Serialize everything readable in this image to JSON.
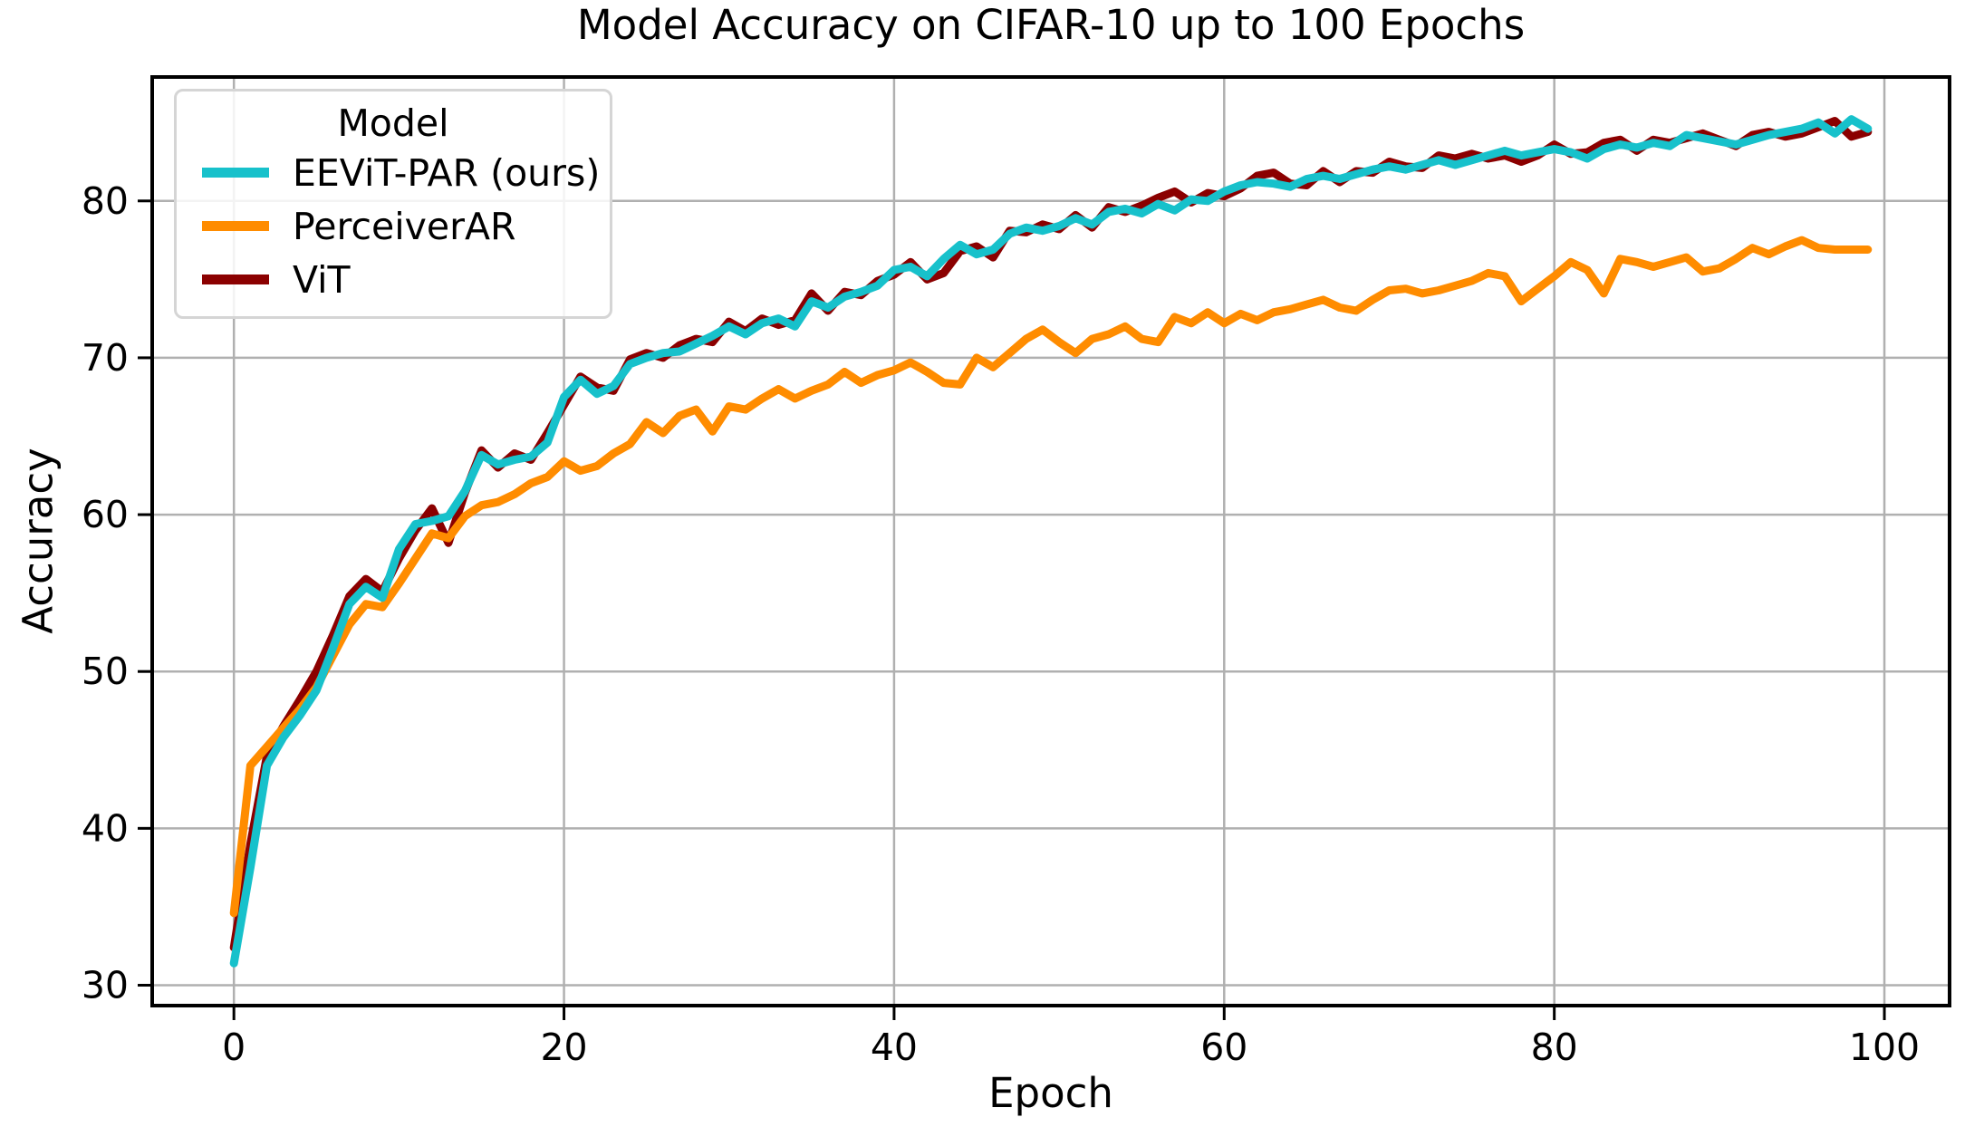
{
  "chart_data": {
    "type": "line",
    "title": "Model Accuracy on CIFAR-10 up to 100 Epochs",
    "xlabel": "Epoch",
    "ylabel": "Accuracy",
    "legend_title": "Model",
    "legend_position": "upper left",
    "grid": true,
    "grid_color": "#b0b0b0",
    "spine_color": "#000000",
    "background_color": "#ffffff",
    "x_ticks": [
      0,
      20,
      40,
      60,
      80,
      100
    ],
    "y_ticks": [
      30,
      40,
      50,
      60,
      70,
      80
    ],
    "xlim": [
      -4.95,
      103.95
    ],
    "ylim": [
      28.7,
      87.9
    ],
    "x": [
      0,
      1,
      2,
      3,
      4,
      5,
      6,
      7,
      8,
      9,
      10,
      11,
      12,
      13,
      14,
      15,
      16,
      17,
      18,
      19,
      20,
      21,
      22,
      23,
      24,
      25,
      26,
      27,
      28,
      29,
      30,
      31,
      32,
      33,
      34,
      35,
      36,
      37,
      38,
      39,
      40,
      41,
      42,
      43,
      44,
      45,
      46,
      47,
      48,
      49,
      50,
      51,
      52,
      53,
      54,
      55,
      56,
      57,
      58,
      59,
      60,
      61,
      62,
      63,
      64,
      65,
      66,
      67,
      68,
      69,
      70,
      71,
      72,
      73,
      74,
      75,
      76,
      77,
      78,
      79,
      80,
      81,
      82,
      83,
      84,
      85,
      86,
      87,
      88,
      89,
      90,
      91,
      92,
      93,
      94,
      95,
      96,
      97,
      98,
      99
    ],
    "series": [
      {
        "name": "EEViT-PAR (ours)",
        "color": "#17c1cb",
        "values": [
          31.4,
          37.5,
          44.0,
          45.8,
          47.2,
          48.8,
          51.5,
          54.3,
          55.4,
          54.7,
          57.8,
          59.4,
          59.6,
          59.9,
          61.5,
          63.8,
          63.2,
          63.5,
          63.7,
          64.6,
          67.5,
          68.6,
          67.7,
          68.2,
          69.6,
          70.0,
          70.3,
          70.4,
          70.9,
          71.4,
          72.0,
          71.5,
          72.2,
          72.5,
          72.0,
          73.6,
          73.2,
          73.9,
          74.2,
          74.6,
          75.6,
          75.8,
          75.2,
          76.3,
          77.2,
          76.6,
          76.9,
          77.9,
          78.3,
          78.1,
          78.4,
          78.9,
          78.5,
          79.3,
          79.5,
          79.2,
          79.8,
          79.4,
          80.1,
          80.0,
          80.6,
          81.0,
          81.2,
          81.1,
          80.9,
          81.4,
          81.6,
          81.4,
          81.7,
          82.0,
          82.2,
          82.0,
          82.3,
          82.6,
          82.3,
          82.6,
          82.9,
          83.2,
          82.9,
          83.1,
          83.3,
          83.1,
          82.7,
          83.3,
          83.6,
          83.4,
          83.7,
          83.5,
          84.2,
          84.0,
          83.8,
          83.6,
          83.9,
          84.2,
          84.4,
          84.6,
          85.0,
          84.3,
          85.2,
          84.6
        ]
      },
      {
        "name": "PerceiverAR",
        "color": "#ff8c00",
        "values": [
          34.6,
          44.0,
          45.2,
          46.4,
          47.6,
          49.0,
          51.0,
          53.0,
          54.3,
          54.1,
          55.6,
          57.2,
          58.8,
          58.5,
          59.9,
          60.6,
          60.8,
          61.3,
          62.0,
          62.4,
          63.4,
          62.8,
          63.1,
          63.9,
          64.5,
          65.9,
          65.2,
          66.3,
          66.7,
          65.3,
          66.9,
          66.7,
          67.4,
          68.0,
          67.4,
          67.9,
          68.3,
          69.1,
          68.4,
          68.9,
          69.2,
          69.7,
          69.1,
          68.4,
          68.3,
          70.0,
          69.4,
          70.3,
          71.2,
          71.8,
          71.0,
          70.3,
          71.2,
          71.5,
          72.0,
          71.2,
          71.0,
          72.6,
          72.2,
          72.9,
          72.2,
          72.8,
          72.4,
          72.9,
          73.1,
          73.4,
          73.7,
          73.2,
          73.0,
          73.7,
          74.3,
          74.4,
          74.1,
          74.3,
          74.6,
          74.9,
          75.4,
          75.2,
          73.6,
          74.4,
          75.2,
          76.1,
          75.6,
          74.1,
          76.3,
          76.1,
          75.8,
          76.1,
          76.4,
          75.5,
          75.7,
          76.3,
          77.0,
          76.6,
          77.1,
          77.5,
          77.0,
          76.9,
          76.9,
          76.9
        ]
      },
      {
        "name": "ViT",
        "color": "#8b0000",
        "values": [
          32.4,
          39.0,
          44.6,
          46.5,
          48.2,
          50.0,
          52.3,
          54.8,
          55.9,
          55.1,
          57.2,
          59.0,
          60.4,
          58.2,
          61.4,
          64.1,
          63.0,
          63.9,
          63.5,
          65.2,
          67.0,
          68.8,
          68.1,
          67.9,
          69.9,
          70.3,
          70.0,
          70.8,
          71.2,
          71.0,
          72.3,
          71.7,
          72.5,
          72.1,
          72.4,
          74.1,
          73.0,
          74.2,
          74.0,
          74.9,
          75.3,
          76.1,
          75.0,
          75.4,
          76.8,
          77.1,
          76.4,
          78.1,
          78.0,
          78.5,
          78.2,
          79.1,
          78.3,
          79.6,
          79.3,
          79.7,
          80.2,
          80.6,
          79.9,
          80.5,
          80.3,
          80.8,
          81.6,
          81.8,
          81.1,
          81.0,
          81.9,
          81.2,
          81.9,
          81.8,
          82.5,
          82.2,
          82.1,
          82.9,
          82.7,
          83.0,
          82.7,
          82.9,
          82.5,
          82.9,
          83.6,
          83.0,
          83.1,
          83.7,
          83.9,
          83.2,
          83.9,
          83.7,
          84.0,
          84.3,
          83.9,
          83.5,
          84.2,
          84.4,
          84.1,
          84.3,
          84.7,
          85.1,
          84.1,
          84.4
        ]
      }
    ]
  }
}
